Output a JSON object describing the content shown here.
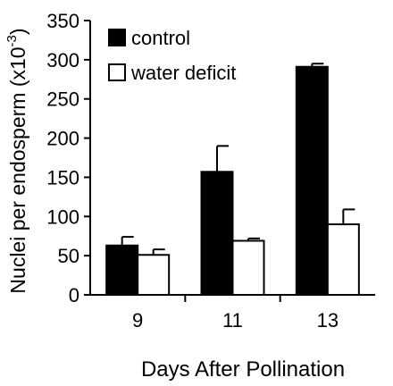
{
  "chart_data": {
    "type": "bar",
    "xlabel": "Days After Pollination",
    "ylabel": "Nuclei per endosperm (x10",
    "ylabel_superscript": "-3",
    "ylabel_suffix": ")",
    "categories": [
      "9",
      "11",
      "13"
    ],
    "ylim": [
      0,
      350
    ],
    "yticks": [
      "0",
      "50",
      "100",
      "150",
      "200",
      "250",
      "300",
      "350"
    ],
    "legend_position": "top-left",
    "grid": false,
    "series": [
      {
        "name": "control",
        "color": "#000000",
        "fill": "solid",
        "values": [
          63,
          157,
          291
        ],
        "errors": [
          11,
          33,
          4
        ]
      },
      {
        "name": "water deficit",
        "color": "#ffffff",
        "fill": "outline",
        "values": [
          51,
          69,
          90
        ],
        "errors": [
          7,
          3,
          19
        ]
      }
    ]
  }
}
